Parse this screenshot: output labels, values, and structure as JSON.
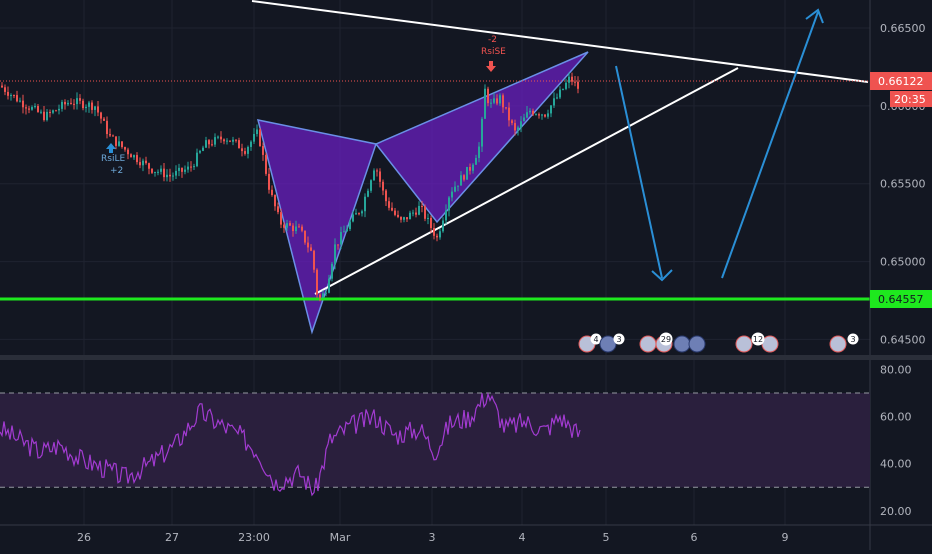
{
  "chart_data": {
    "type": "candlestick",
    "symbol_note": "",
    "price_axis": {
      "ylim": [
        0.644,
        0.6668
      ],
      "ticks": [
        "0.66500",
        "0.66000",
        "0.65500",
        "0.65000",
        "0.64500"
      ],
      "current_price": "0.66122",
      "countdown": "20:35",
      "support_level_label": "0.64557"
    },
    "time_axis": {
      "labels": [
        "26",
        "27",
        "23:00",
        "Mar",
        "3",
        "4",
        "5",
        "6",
        "9"
      ]
    },
    "price_series": {
      "anchors": [
        [
          0,
          0.6613
        ],
        [
          20,
          0.6603
        ],
        [
          45,
          0.6593
        ],
        [
          70,
          0.6603
        ],
        [
          95,
          0.66
        ],
        [
          110,
          0.658
        ],
        [
          125,
          0.6572
        ],
        [
          150,
          0.656
        ],
        [
          170,
          0.6555
        ],
        [
          190,
          0.656
        ],
        [
          205,
          0.6575
        ],
        [
          225,
          0.658
        ],
        [
          245,
          0.6572
        ],
        [
          258,
          0.6583
        ],
        [
          270,
          0.6545
        ],
        [
          280,
          0.6525
        ],
        [
          300,
          0.652
        ],
        [
          312,
          0.6505
        ],
        [
          318,
          0.6475
        ],
        [
          325,
          0.648
        ],
        [
          335,
          0.651
        ],
        [
          350,
          0.6525
        ],
        [
          362,
          0.6535
        ],
        [
          375,
          0.6563
        ],
        [
          385,
          0.654
        ],
        [
          400,
          0.6525
        ],
        [
          420,
          0.6535
        ],
        [
          437,
          0.6515
        ],
        [
          450,
          0.6545
        ],
        [
          470,
          0.656
        ],
        [
          480,
          0.6575
        ],
        [
          485,
          0.661
        ],
        [
          490,
          0.66
        ],
        [
          500,
          0.6605
        ],
        [
          515,
          0.6583
        ],
        [
          530,
          0.6597
        ],
        [
          545,
          0.6595
        ],
        [
          560,
          0.6608
        ],
        [
          570,
          0.6618
        ],
        [
          580,
          0.661
        ]
      ]
    },
    "signals": [
      {
        "label": "RsiLE",
        "count": "+2",
        "side": "long"
      },
      {
        "label": "RsiSE",
        "count": "-2",
        "side": "short"
      }
    ],
    "events": [
      "4",
      "3",
      "29",
      "12",
      "3"
    ],
    "rsi_panel": {
      "ticks": [
        "80.00",
        "60.00",
        "40.00",
        "20.00"
      ],
      "ylim": [
        14,
        84
      ],
      "upper_band": 70,
      "lower_band": 30,
      "anchors": [
        [
          0,
          55
        ],
        [
          20,
          50
        ],
        [
          40,
          45
        ],
        [
          60,
          48
        ],
        [
          80,
          42
        ],
        [
          105,
          38
        ],
        [
          125,
          34
        ],
        [
          150,
          40
        ],
        [
          175,
          48
        ],
        [
          200,
          62
        ],
        [
          215,
          58
        ],
        [
          240,
          52
        ],
        [
          258,
          45
        ],
        [
          275,
          32
        ],
        [
          300,
          36
        ],
        [
          315,
          28
        ],
        [
          330,
          50
        ],
        [
          350,
          56
        ],
        [
          375,
          60
        ],
        [
          395,
          52
        ],
        [
          420,
          55
        ],
        [
          435,
          45
        ],
        [
          450,
          57
        ],
        [
          470,
          60
        ],
        [
          488,
          70
        ],
        [
          505,
          55
        ],
        [
          525,
          58
        ],
        [
          545,
          54
        ],
        [
          560,
          60
        ],
        [
          570,
          56
        ],
        [
          580,
          52
        ]
      ]
    },
    "colors": {
      "background": "#131722",
      "up": "#26a69a",
      "down": "#ef5350",
      "pattern_fill": "#6a1fc0",
      "support": "#1ee81e",
      "arrows": "#2a8fd6",
      "rsi_line": "#a23bd1",
      "rsi_band": "#2a1f3d"
    }
  }
}
